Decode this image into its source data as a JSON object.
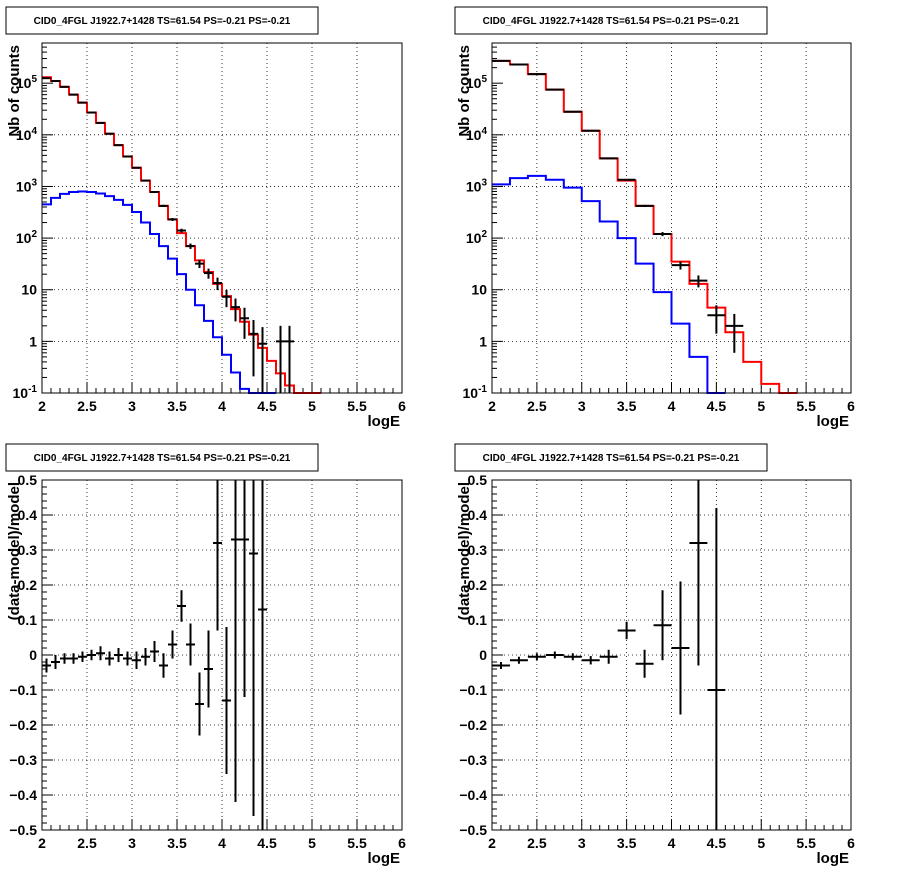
{
  "chart_data": [
    {
      "type": "line",
      "title": "CID0_4FGL J1922.7+1428 TS=61.54 PS=-0.21 PS=-0.21",
      "xlabel": "logE",
      "ylabel": "Nb of counts",
      "log_y": true,
      "xlim": [
        2,
        6
      ],
      "ylim": [
        0.1,
        600000
      ],
      "grid": true,
      "x_ticks": [
        "2",
        "2.5",
        "3",
        "3.5",
        "4",
        "4.5",
        "5",
        "5.5",
        "6"
      ],
      "y_ticks": [
        "10^-1",
        "1",
        "10",
        "10^2",
        "10^3",
        "10^4",
        "10^5"
      ],
      "bin_width": 0.1,
      "series": [
        {
          "color": "#ff0000",
          "style": "step",
          "x": [
            2.0,
            2.1,
            2.2,
            2.3,
            2.4,
            2.5,
            2.6,
            2.7,
            2.8,
            2.9,
            3.0,
            3.1,
            3.2,
            3.3,
            3.4,
            3.5,
            3.6,
            3.7,
            3.8,
            3.9,
            4.0,
            4.1,
            4.2,
            4.3,
            4.4,
            4.5,
            4.6,
            4.7,
            4.8,
            4.9,
            5.0
          ],
          "values": [
            130000,
            110000,
            85000,
            60000,
            42000,
            27000,
            17000,
            10500,
            6300,
            3800,
            2300,
            1300,
            780,
            420,
            230,
            125,
            70,
            37,
            22,
            13,
            7.5,
            4.2,
            2.4,
            1.35,
            0.75,
            0.42,
            0.24,
            0.14,
            0.1,
            0.1,
            0.1
          ]
        },
        {
          "color": "#0000ff",
          "style": "step",
          "x": [
            2.0,
            2.1,
            2.2,
            2.3,
            2.4,
            2.5,
            2.6,
            2.7,
            2.8,
            2.9,
            3.0,
            3.1,
            3.2,
            3.3,
            3.4,
            3.5,
            3.6,
            3.7,
            3.8,
            3.9,
            4.0,
            4.1,
            4.2,
            4.3,
            4.4,
            4.5
          ],
          "values": [
            450,
            600,
            720,
            780,
            800,
            780,
            730,
            650,
            550,
            440,
            320,
            200,
            120,
            70,
            40,
            20,
            10,
            5,
            2.5,
            1.2,
            0.55,
            0.25,
            0.12,
            0.1,
            0.1,
            0.1
          ]
        },
        {
          "color": "#000000",
          "style": "errorbars",
          "x": [
            2.05,
            2.15,
            2.25,
            2.35,
            2.45,
            2.55,
            2.65,
            2.75,
            2.85,
            2.95,
            3.05,
            3.15,
            3.25,
            3.35,
            3.45,
            3.55,
            3.65,
            3.75,
            3.85,
            3.95,
            4.05,
            4.15,
            4.25,
            4.35,
            4.45,
            4.65,
            4.75
          ],
          "values": [
            125000,
            110000,
            85000,
            60000,
            42000,
            27000,
            17000,
            10500,
            6300,
            3800,
            2300,
            1300,
            780,
            420,
            230,
            140,
            70,
            32,
            21,
            13.5,
            7.3,
            4.6,
            2.8,
            1.4,
            0.9,
            1,
            1
          ],
          "rel_err": [
            0.003,
            0.003,
            0.003,
            0.004,
            0.005,
            0.006,
            0.008,
            0.01,
            0.013,
            0.016,
            0.021,
            0.028,
            0.036,
            0.049,
            0.066,
            0.085,
            0.12,
            0.18,
            0.22,
            0.27,
            0.37,
            0.47,
            0.6,
            0.85,
            1.1,
            1.0,
            1.0
          ]
        }
      ]
    },
    {
      "type": "line",
      "title": "CID0_4FGL J1922.7+1428 TS=61.54 PS=-0.21 PS=-0.21",
      "xlabel": "logE",
      "ylabel": "Nb of counts",
      "log_y": true,
      "xlim": [
        2,
        6
      ],
      "ylim": [
        0.1,
        600000
      ],
      "grid": true,
      "x_ticks": [
        "2",
        "2.5",
        "3",
        "3.5",
        "4",
        "4.5",
        "5",
        "5.5",
        "6"
      ],
      "y_ticks": [
        "10^-1",
        "1",
        "10",
        "10^2",
        "10^3",
        "10^4",
        "10^5"
      ],
      "bin_width": 0.2,
      "series": [
        {
          "color": "#ff0000",
          "style": "step",
          "x": [
            2.0,
            2.2,
            2.4,
            2.6,
            2.8,
            3.0,
            3.2,
            3.4,
            3.6,
            3.8,
            4.0,
            4.2,
            4.4,
            4.6,
            4.8,
            5.0,
            5.2
          ],
          "values": [
            270000,
            230000,
            150000,
            75000,
            28000,
            12000,
            3500,
            1300,
            420,
            120,
            35,
            13,
            4.5,
            1.5,
            0.4,
            0.15,
            0.1
          ]
        },
        {
          "color": "#0000ff",
          "style": "step",
          "x": [
            2.0,
            2.2,
            2.4,
            2.6,
            2.8,
            3.0,
            3.2,
            3.4,
            3.6,
            3.8,
            4.0,
            4.2,
            4.4
          ],
          "values": [
            1100,
            1450,
            1600,
            1350,
            950,
            520,
            210,
            100,
            32,
            9,
            2.2,
            0.5,
            0.1
          ]
        },
        {
          "color": "#000000",
          "style": "errorbars",
          "x": [
            2.1,
            2.3,
            2.5,
            2.7,
            2.9,
            3.1,
            3.3,
            3.5,
            3.7,
            3.9,
            4.1,
            4.3,
            4.5,
            4.7
          ],
          "values": [
            270000,
            230000,
            150000,
            75000,
            28000,
            12000,
            3500,
            1350,
            420,
            120,
            30,
            15,
            3.2,
            2
          ],
          "rel_err": [
            0.002,
            0.002,
            0.003,
            0.004,
            0.006,
            0.009,
            0.017,
            0.027,
            0.049,
            0.091,
            0.18,
            0.26,
            0.56,
            0.7
          ]
        }
      ]
    },
    {
      "type": "scatter",
      "title": "CID0_4FGL J1922.7+1428 TS=61.54 PS=-0.21 PS=-0.21",
      "xlabel": "logE",
      "ylabel": "(data-model)/model",
      "xlim": [
        2,
        6
      ],
      "ylim": [
        -0.5,
        0.5
      ],
      "grid": true,
      "x_ticks": [
        "2",
        "2.5",
        "3",
        "3.5",
        "4",
        "4.5",
        "5",
        "5.5",
        "6"
      ],
      "y_ticks": [
        "−0.5",
        "−0.4",
        "−0.3",
        "−0.2",
        "−0.1",
        "0",
        "0.1",
        "0.2",
        "0.3",
        "0.4",
        "0.5"
      ],
      "bin_width": 0.1,
      "points": {
        "x": [
          2.05,
          2.15,
          2.25,
          2.35,
          2.45,
          2.55,
          2.65,
          2.75,
          2.85,
          2.95,
          3.05,
          3.15,
          3.25,
          3.35,
          3.45,
          3.55,
          3.65,
          3.75,
          3.85,
          3.95,
          4.05,
          4.15,
          4.25,
          4.35,
          4.45
        ],
        "y": [
          -0.03,
          -0.02,
          -0.01,
          -0.01,
          -0.005,
          0,
          0.005,
          -0.01,
          0,
          -0.01,
          -0.015,
          -0.005,
          0.01,
          -0.03,
          0.03,
          0.14,
          0.03,
          -0.14,
          -0.04,
          0.32,
          -0.13,
          0.33,
          0.33,
          0.29,
          0.13
        ],
        "err": [
          0.02,
          0.02,
          0.015,
          0.015,
          0.015,
          0.015,
          0.02,
          0.02,
          0.02,
          0.02,
          0.025,
          0.025,
          0.03,
          0.035,
          0.04,
          0.045,
          0.06,
          0.09,
          0.11,
          0.25,
          0.21,
          0.75,
          0.45,
          0.75,
          1.0
        ]
      }
    },
    {
      "type": "scatter",
      "title": "CID0_4FGL J1922.7+1428 TS=61.54 PS=-0.21 PS=-0.21",
      "xlabel": "logE",
      "ylabel": "(data-model)/model",
      "xlim": [
        2,
        6
      ],
      "ylim": [
        -0.5,
        0.5
      ],
      "grid": true,
      "x_ticks": [
        "2",
        "2.5",
        "3",
        "3.5",
        "4",
        "4.5",
        "5",
        "5.5",
        "6"
      ],
      "y_ticks": [
        "−0.5",
        "−0.4",
        "−0.3",
        "−0.2",
        "−0.1",
        "0",
        "0.1",
        "0.2",
        "0.3",
        "0.4",
        "0.5"
      ],
      "bin_width": 0.2,
      "points": {
        "x": [
          2.1,
          2.3,
          2.5,
          2.7,
          2.9,
          3.1,
          3.3,
          3.5,
          3.7,
          3.9,
          4.1,
          4.3,
          4.5
        ],
        "y": [
          -0.03,
          -0.015,
          -0.005,
          0,
          -0.005,
          -0.015,
          -0.005,
          0.07,
          -0.025,
          0.085,
          0.02,
          0.32,
          -0.1
        ],
        "err": [
          0.01,
          0.01,
          0.01,
          0.01,
          0.01,
          0.012,
          0.02,
          0.025,
          0.04,
          0.1,
          0.19,
          0.35,
          0.52
        ]
      }
    }
  ]
}
